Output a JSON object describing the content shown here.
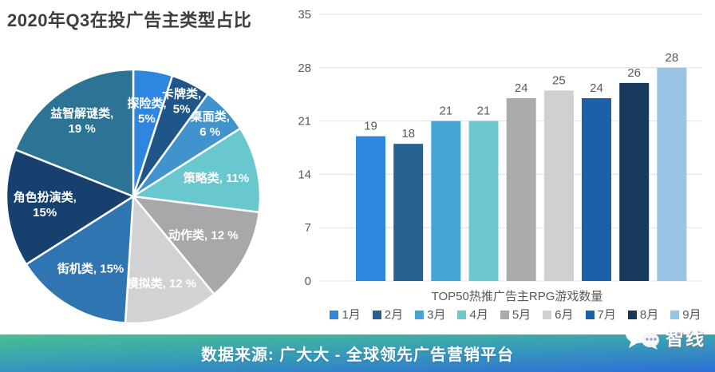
{
  "title": "2020年Q3在投广告主类型占比",
  "footer": {
    "text": "数据来源: 广大大 - 全球领先广告营销平台"
  },
  "logo": {
    "text": "智线",
    "icon": "chat-bubbles-icon"
  },
  "colors": {
    "title_text": "#3e3e3e",
    "axis_text": "#595959",
    "gridline": "#e1e1e1",
    "pie_label_text": "#ffffff",
    "banner_gradient_top": "#4abe92",
    "banner_gradient_bottom": "#2e6fd6"
  },
  "chart_data": [
    {
      "type": "pie",
      "title": "2020年Q3在投广告主类型占比",
      "unit": "%",
      "direction": "clockwise",
      "start_angle": "12-o-clock",
      "slices": [
        {
          "label": "探险类",
          "value": 5,
          "display": [
            "探险类,",
            "5%"
          ],
          "color": "#2F86E0",
          "label_r": 0.68
        },
        {
          "label": "卡牌类",
          "value": 5,
          "display": [
            "卡牌类,",
            "5%"
          ],
          "color": "#1F5588",
          "label_r": 0.84
        },
        {
          "label": "桌面类",
          "value": 6,
          "display": [
            "桌面类,",
            "6 %"
          ],
          "color": "#4193CE",
          "label_r": 0.83
        },
        {
          "label": "策略类",
          "value": 11,
          "display": [
            "策略类, 11%"
          ],
          "color": "#69C7CE",
          "label_r": 0.67
        },
        {
          "label": "动作类",
          "value": 12,
          "display": [
            "动作类, 12 %"
          ],
          "color": "#A8A8AA",
          "label_r": 0.63
        },
        {
          "label": "模拟类",
          "value": 12,
          "display": [
            "模拟类, 12 %"
          ],
          "color": "#D2D2D4",
          "label_r": 0.72
        },
        {
          "label": "街机类",
          "value": 15,
          "display": [
            "街机类, 15%"
          ],
          "color": "#2E75B2",
          "label_r": 0.66
        },
        {
          "label": "角色扮演类",
          "value": 15,
          "display": [
            "角色扮演类,",
            "15%"
          ],
          "color": "#17406E",
          "label_r": 0.7
        },
        {
          "label": "益智解谜类",
          "value": 19,
          "display": [
            "益智解谜类,",
            "19 %"
          ],
          "color": "#2D7396",
          "label_r": 0.72
        }
      ]
    },
    {
      "type": "bar",
      "xlabel": "TOP50热推广告主RPG游戏数量",
      "categories": [
        "1月",
        "2月",
        "3月",
        "4月",
        "5月",
        "6月",
        "7月",
        "8月",
        "9月"
      ],
      "values": [
        19,
        18,
        21,
        21,
        24,
        25,
        24,
        26,
        28
      ],
      "colors": [
        "#2F86E0",
        "#27618F",
        "#45A4D6",
        "#6FC8CE",
        "#ABABAB",
        "#D0D0D0",
        "#1C60A7",
        "#17395C",
        "#9AC4E4"
      ],
      "ylim": [
        0,
        35
      ],
      "yticks": [
        0,
        7,
        14,
        21,
        28,
        35
      ],
      "grid": true,
      "legend_position": "bottom",
      "value_labels": true
    }
  ]
}
